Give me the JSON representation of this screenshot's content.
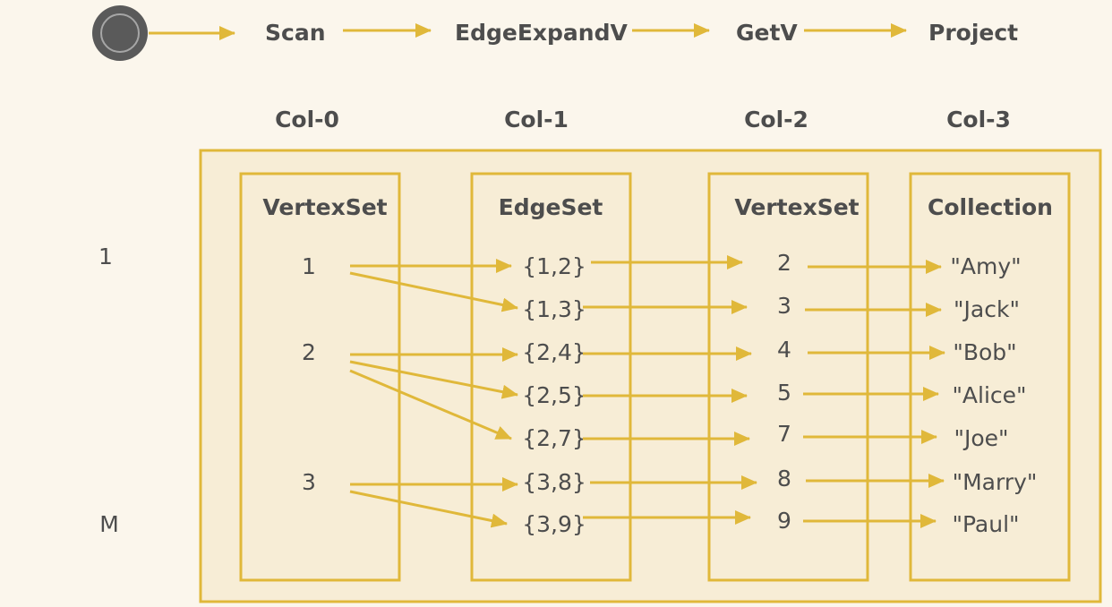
{
  "colors": {
    "background": "#fbf6ec",
    "accent": "#e0b83a",
    "panel_fill": "#f7edd6",
    "text": "#4d4d4d",
    "start_node": "#5a5a5a"
  },
  "pipeline": {
    "steps": [
      "Scan",
      "EdgeExpandV",
      "GetV",
      "Project"
    ]
  },
  "row_labels": {
    "first": "1",
    "last": "M"
  },
  "columns": [
    {
      "header": "Col-0",
      "type": "VertexSet",
      "items": [
        "1",
        "2",
        "3"
      ]
    },
    {
      "header": "Col-1",
      "type": "EdgeSet",
      "items": [
        "{1,2}",
        "{1,3}",
        "{2,4}",
        "{2,5}",
        "{2,7}",
        "{3,8}",
        "{3,9}"
      ]
    },
    {
      "header": "Col-2",
      "type": "VertexSet",
      "items": [
        "2",
        "3",
        "4",
        "5",
        "7",
        "8",
        "9"
      ]
    },
    {
      "header": "Col-3",
      "type": "Collection",
      "items": [
        "\"Amy\"",
        "\"Jack\"",
        "\"Bob\"",
        "\"Alice\"",
        "\"Joe\"",
        "\"Marry\"",
        "\"Paul\""
      ]
    }
  ]
}
